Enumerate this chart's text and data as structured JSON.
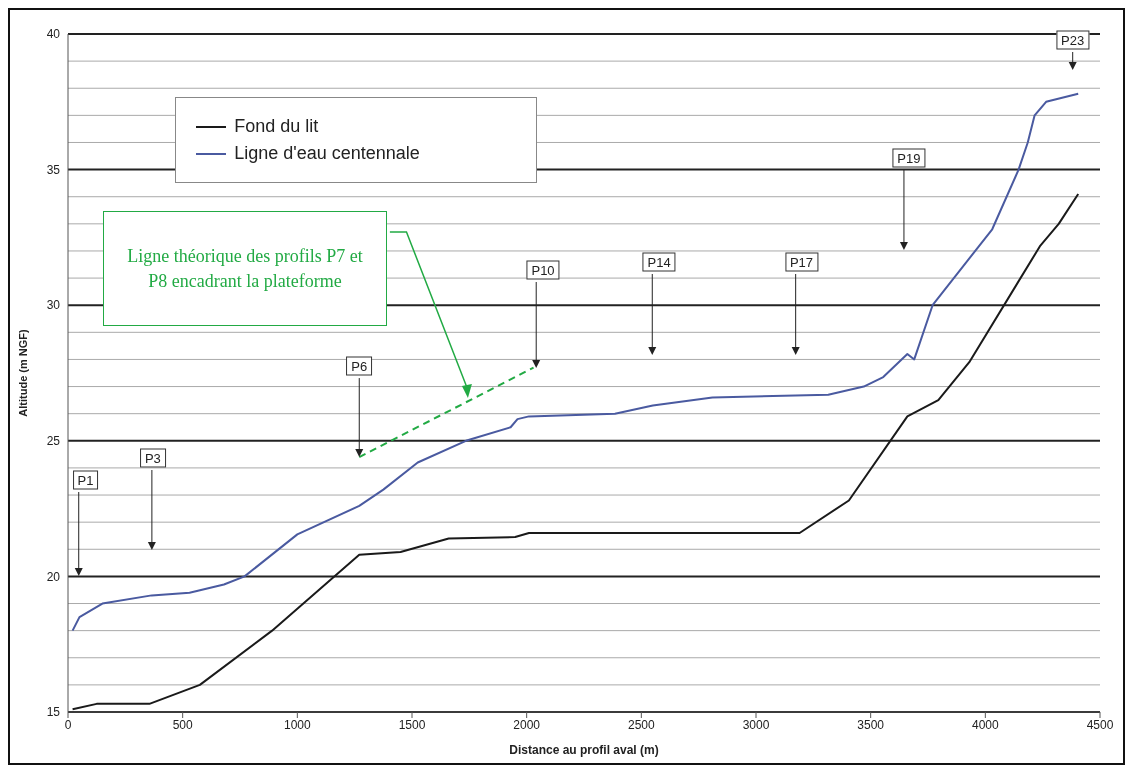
{
  "chart_data": {
    "type": "line",
    "xlabel": "Distance au profil aval (m)",
    "ylabel": "Altitude (m NGF)",
    "xlim": [
      0,
      4500
    ],
    "xticks": [
      0,
      500,
      1000,
      1500,
      2000,
      2500,
      3000,
      3500,
      4000,
      4500
    ],
    "ylim": [
      15,
      40
    ],
    "yticks": [
      15,
      {
        "value": 16,
        "label": null
      },
      {
        "value": 17,
        "label": null
      },
      {
        "value": 18,
        "label": null
      },
      {
        "value": 19,
        "label": null
      },
      20,
      {
        "value": 21,
        "label": null
      },
      {
        "value": 22,
        "label": null
      },
      {
        "value": 23,
        "label": null
      },
      {
        "value": 24,
        "label": null
      },
      25,
      {
        "value": 26,
        "label": null
      },
      {
        "value": 27,
        "label": null
      },
      {
        "value": 28,
        "label": null
      },
      {
        "value": 29,
        "label": null
      },
      30,
      {
        "value": 31,
        "label": null
      },
      {
        "value": 32,
        "label": null
      },
      {
        "value": 33,
        "label": null
      },
      {
        "value": 34,
        "label": null
      },
      35,
      {
        "value": 36,
        "label": null
      },
      {
        "value": 37,
        "label": null
      },
      {
        "value": 38,
        "label": null
      },
      {
        "value": 39,
        "label": null
      },
      40
    ],
    "grid": "y",
    "legend": "top left",
    "line_style": "solid",
    "series": [
      {
        "name": "Fond du lit",
        "color": "#1a1a1a",
        "x": [
          20,
          125,
          355,
          575,
          890,
          1270,
          1450,
          1660,
          1950,
          2010,
          2400,
          3190,
          3405,
          3660,
          3795,
          3930,
          4240,
          4320,
          4405
        ],
        "values": [
          15.1,
          15.3,
          15.3,
          16.0,
          18.0,
          20.8,
          20.9,
          21.4,
          21.45,
          21.6,
          21.6,
          21.6,
          22.8,
          25.9,
          26.5,
          27.9,
          32.2,
          33.0,
          34.1
        ]
      },
      {
        "name": "Ligne d'eau centennale",
        "color": "#4a5aa0",
        "x": [
          20,
          50,
          150,
          365,
          530,
          680,
          770,
          1000,
          1270,
          1375,
          1525,
          1735,
          1930,
          1960,
          2010,
          2385,
          2550,
          2810,
          3315,
          3470,
          3555,
          3660,
          3690,
          3770,
          4030,
          4145,
          4185,
          4215,
          4265,
          4405
        ],
        "values": [
          18.0,
          18.5,
          19.0,
          19.3,
          19.4,
          19.7,
          20.0,
          21.55,
          22.6,
          23.2,
          24.2,
          25.0,
          25.5,
          25.8,
          25.9,
          26.0,
          26.3,
          26.6,
          26.7,
          27.0,
          27.35,
          28.2,
          28.0,
          30.0,
          32.8,
          35.0,
          36.0,
          37.0,
          37.5,
          37.8
        ]
      },
      {
        "type": "line",
        "color": "#22aa44",
        "line_style": "dashed",
        "x": [
          1270,
          2030
        ],
        "values": [
          24.4,
          27.7
        ]
      }
    ],
    "annotations": [
      "P1",
      "P3",
      {
        "text": "P6",
        "x": 1270,
        "y": 24.4
      },
      "P10",
      "P14",
      "P17",
      "P19",
      "P23",
      "Ligne théorique des profils P7 et P8 encadrant la plateforme"
    ]
  }
}
